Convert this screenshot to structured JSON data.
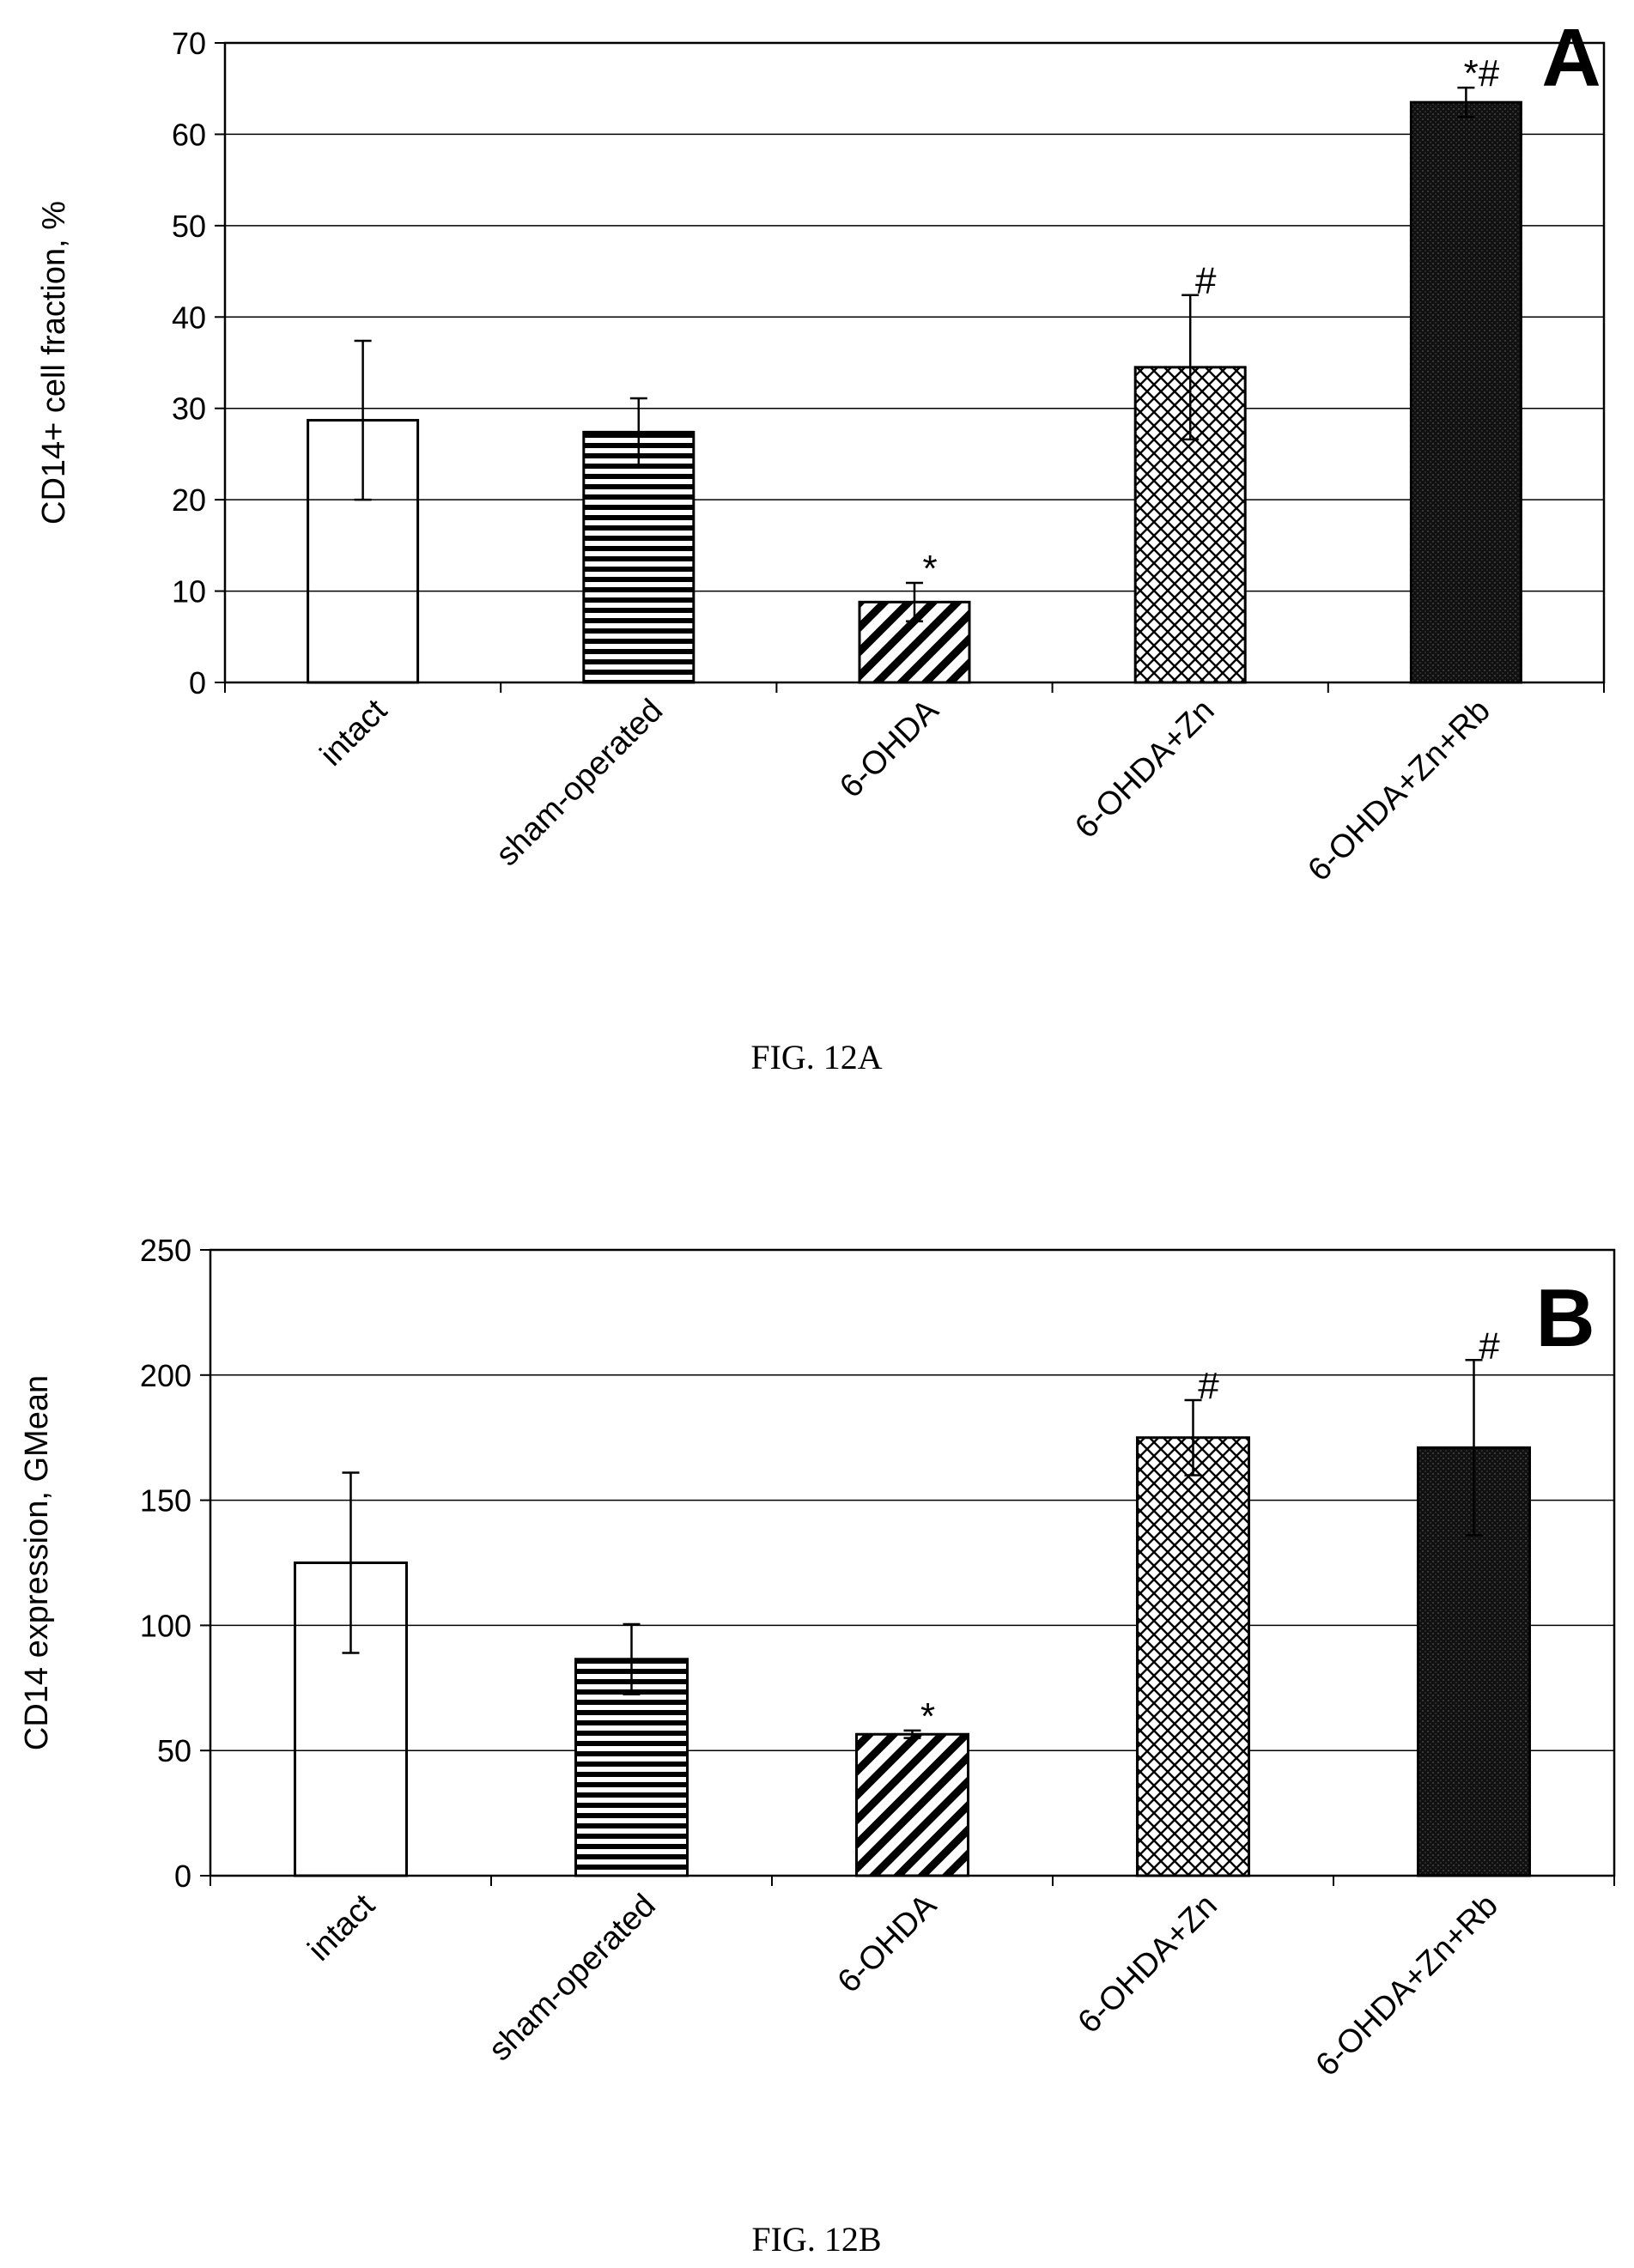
{
  "figures": [
    {
      "panel_letter": "A",
      "caption": "FIG. 12A",
      "chart_data": {
        "type": "bar",
        "ylabel": "CD14+ cell fraction, %",
        "xlabel": "",
        "ylim": [
          0,
          70
        ],
        "yticks": [
          0,
          10,
          20,
          30,
          40,
          50,
          60,
          70
        ],
        "grid": true,
        "categories": [
          "intact",
          "sham-operated",
          "6-OHDA",
          "6-OHDA+Zn",
          "6-OHDA+Zn+Rb"
        ],
        "values": [
          28.7,
          27.4,
          8.8,
          34.5,
          63.5
        ],
        "errors": [
          8.7,
          3.7,
          2.1,
          7.9,
          1.6
        ],
        "annotations": [
          "",
          "",
          "*",
          "#",
          "*#"
        ],
        "patterns": [
          "white",
          "horizontal-lines",
          "diagonal-lines",
          "crosshatch",
          "solid-black"
        ]
      }
    },
    {
      "panel_letter": "B",
      "caption": "FIG. 12B",
      "chart_data": {
        "type": "bar",
        "ylabel": "CD14 expression, GMean",
        "xlabel": "",
        "ylim": [
          0,
          250
        ],
        "yticks": [
          0,
          50,
          100,
          150,
          200,
          250
        ],
        "grid": true,
        "categories": [
          "intact",
          "sham-operated",
          "6-OHDA",
          "6-OHDA+Zn",
          "6-OHDA+Zn+Rb"
        ],
        "values": [
          125,
          86.5,
          56.5,
          175,
          171
        ],
        "errors": [
          36,
          14,
          1.5,
          15,
          35
        ],
        "annotations": [
          "",
          "",
          "*",
          "#",
          "#"
        ],
        "patterns": [
          "white",
          "horizontal-lines",
          "diagonal-lines",
          "crosshatch",
          "solid-black"
        ]
      }
    }
  ]
}
